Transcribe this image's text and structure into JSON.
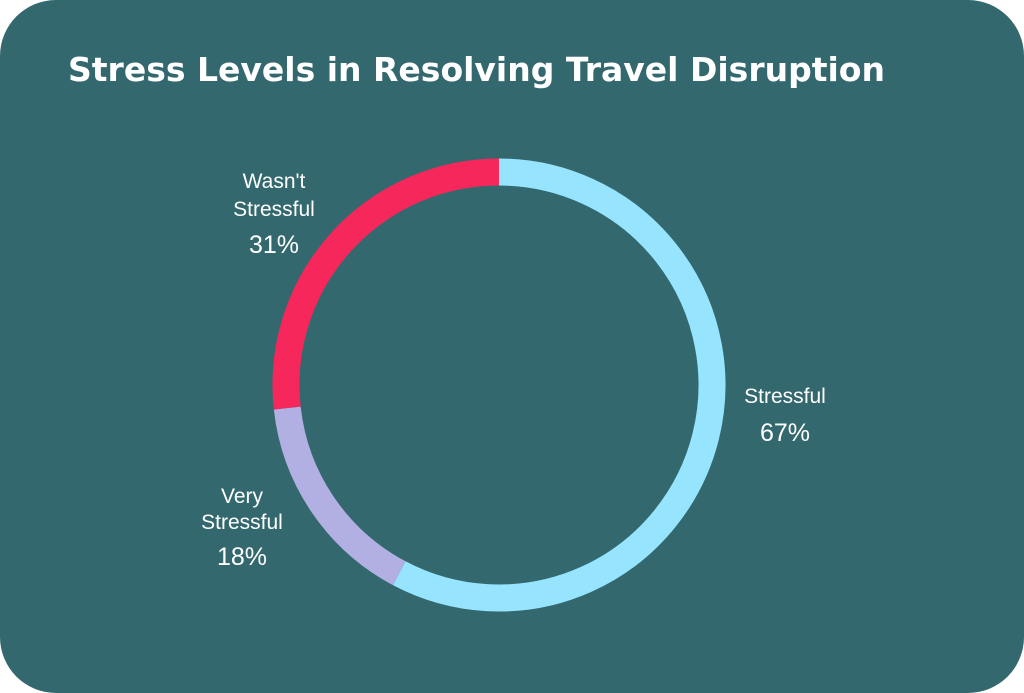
{
  "card": {
    "background": "#33686e"
  },
  "chart_data": {
    "type": "pie",
    "variant": "donut",
    "title": "Stress Levels in Resolving Travel Disruption",
    "start_angle_deg": 0,
    "direction": "clockwise",
    "slices": [
      {
        "name_lines": [
          "Stressful"
        ],
        "value": 67,
        "label": "67%",
        "color": "#96e4fe"
      },
      {
        "name_lines": [
          "Very",
          "Stressful"
        ],
        "value": 18,
        "label": "18%",
        "color": "#b2b0e2"
      },
      {
        "name_lines": [
          "Wasn't",
          "Stressful"
        ],
        "value": 31,
        "label": "31%",
        "color": "#f6275b"
      }
    ]
  }
}
